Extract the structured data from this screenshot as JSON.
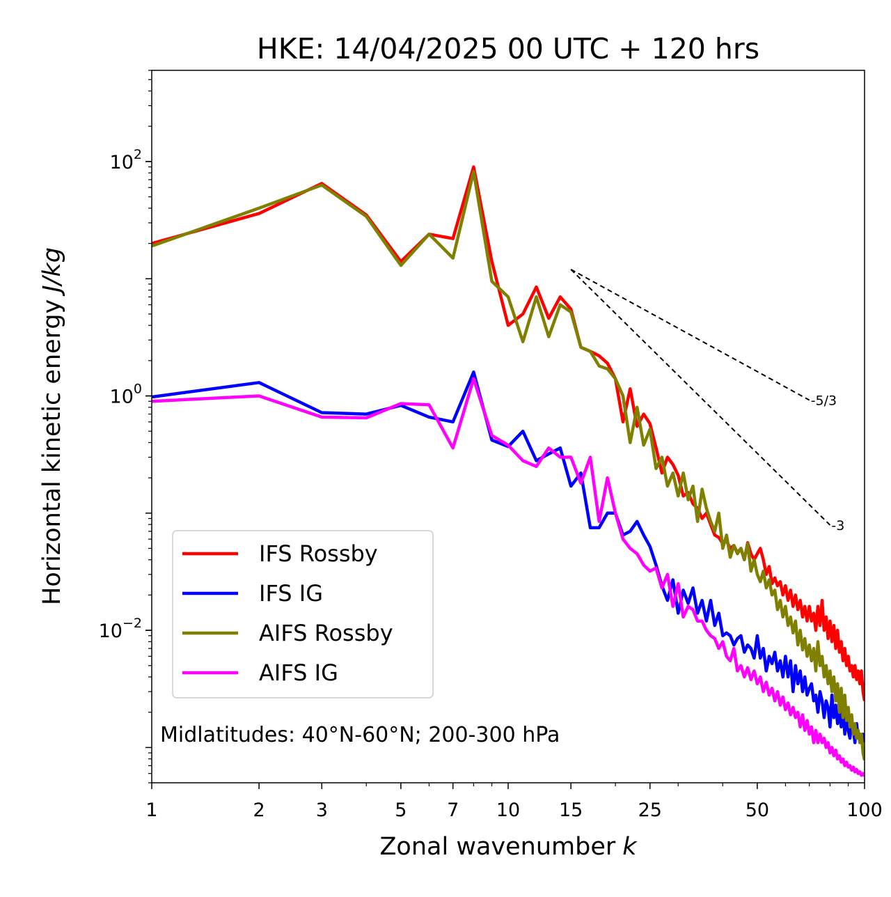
{
  "chart_data": {
    "type": "line",
    "title": "HKE: 14/04/2025 00 UTC + 120 hrs",
    "xlabel": "Zonal wavenumber",
    "xlabel_var": "k",
    "ylabel": "Horizontal kinetic energy",
    "ylabel_unit": "J/kg",
    "xscale": "log",
    "yscale": "log",
    "xlim": [
      1,
      100
    ],
    "ylim": [
      0.0005,
      600
    ],
    "xticks": [
      1,
      2,
      3,
      5,
      7,
      10,
      15,
      25,
      50,
      100
    ],
    "yticks": [
      {
        "value": 0.01,
        "base": "10",
        "exp": "−2"
      },
      {
        "value": 1,
        "base": "10",
        "exp": "0"
      },
      {
        "value": 100,
        "base": "10",
        "exp": "2"
      }
    ],
    "annotation": "Midlatitudes: 40°N-60°N; 200-300 hPa",
    "legend_position": "lower-left",
    "reference_lines": [
      {
        "label": "-5/3",
        "slope": -1.6667,
        "x0": 15,
        "y0": 12.0,
        "x1": 70,
        "color": "#000000"
      },
      {
        "label": "-3",
        "slope": -3,
        "x0": 15,
        "y0": 12.0,
        "x1": 80,
        "color": "#000000"
      }
    ],
    "series": [
      {
        "name": "IFS Rossby",
        "color": "#ff0000",
        "x": [
          1,
          2,
          3,
          4,
          5,
          6,
          7,
          8,
          9,
          10,
          11,
          12,
          13,
          14,
          15,
          16,
          17,
          18,
          19,
          20,
          21,
          22,
          23,
          24,
          25,
          26,
          27,
          28,
          29,
          30,
          31,
          32,
          33,
          34,
          35,
          36,
          37,
          38,
          39,
          40,
          41,
          42,
          43,
          44,
          45,
          46,
          47,
          48,
          49,
          50,
          51,
          52,
          53,
          54,
          55,
          56,
          57,
          58,
          59,
          60,
          61,
          62,
          63,
          64,
          65,
          66,
          67,
          68,
          69,
          70,
          71,
          72,
          73,
          74,
          75,
          76,
          77,
          78,
          79,
          80,
          81,
          82,
          83,
          84,
          85,
          86,
          87,
          88,
          89,
          90,
          91,
          92,
          93,
          94,
          95,
          96,
          97,
          98,
          99,
          100
        ],
        "y": [
          20,
          36,
          65,
          35,
          14,
          24,
          22,
          90,
          14,
          4.0,
          5.0,
          8.5,
          4.6,
          7.0,
          5.5,
          2.6,
          2.4,
          2.2,
          1.9,
          1.4,
          0.6,
          1.15,
          0.55,
          0.7,
          0.58,
          0.36,
          0.22,
          0.3,
          0.26,
          0.21,
          0.14,
          0.15,
          0.12,
          0.11,
          0.09,
          0.1,
          0.08,
          0.065,
          0.062,
          0.055,
          0.058,
          0.05,
          0.053,
          0.046,
          0.05,
          0.04,
          0.056,
          0.045,
          0.04,
          0.045,
          0.05,
          0.04,
          0.03,
          0.035,
          0.025,
          0.028,
          0.024,
          0.026,
          0.02,
          0.024,
          0.018,
          0.022,
          0.016,
          0.02,
          0.015,
          0.018,
          0.013,
          0.016,
          0.012,
          0.016,
          0.012,
          0.014,
          0.01,
          0.016,
          0.011,
          0.018,
          0.01,
          0.013,
          0.0085,
          0.012,
          0.008,
          0.011,
          0.007,
          0.01,
          0.0065,
          0.008,
          0.0055,
          0.007,
          0.005,
          0.006,
          0.0045,
          0.005,
          0.004,
          0.005,
          0.0038,
          0.0045,
          0.0035,
          0.0045,
          0.003,
          0.0025
        ]
      },
      {
        "name": "IFS IG",
        "color": "#0000ff",
        "x": [
          1,
          2,
          3,
          4,
          5,
          6,
          7,
          8,
          9,
          10,
          11,
          12,
          13,
          14,
          15,
          16,
          17,
          18,
          19,
          20,
          21,
          22,
          23,
          24,
          25,
          26,
          27,
          28,
          29,
          30,
          31,
          32,
          33,
          34,
          35,
          36,
          37,
          38,
          39,
          40,
          41,
          42,
          43,
          44,
          45,
          46,
          47,
          48,
          49,
          50,
          51,
          52,
          53,
          54,
          55,
          56,
          57,
          58,
          59,
          60,
          61,
          62,
          63,
          64,
          65,
          66,
          67,
          68,
          69,
          70,
          71,
          72,
          73,
          74,
          75,
          76,
          77,
          78,
          79,
          80,
          81,
          82,
          83,
          84,
          85,
          86,
          87,
          88,
          89,
          90,
          91,
          92,
          93,
          94,
          95,
          96,
          97,
          98,
          99,
          100
        ],
        "y": [
          0.98,
          1.3,
          0.72,
          0.7,
          0.83,
          0.66,
          0.6,
          1.6,
          0.42,
          0.37,
          0.5,
          0.28,
          0.32,
          0.36,
          0.17,
          0.22,
          0.075,
          0.075,
          0.1,
          0.1,
          0.065,
          0.07,
          0.085,
          0.065,
          0.052,
          0.036,
          0.024,
          0.018,
          0.027,
          0.014,
          0.022,
          0.017,
          0.023,
          0.014,
          0.018,
          0.012,
          0.018,
          0.011,
          0.014,
          0.009,
          0.0095,
          0.009,
          0.0075,
          0.0085,
          0.009,
          0.0065,
          0.0075,
          0.007,
          0.0058,
          0.009,
          0.0058,
          0.007,
          0.0045,
          0.006,
          0.0052,
          0.0065,
          0.0045,
          0.0055,
          0.004,
          0.006,
          0.004,
          0.0055,
          0.003,
          0.005,
          0.0035,
          0.0045,
          0.003,
          0.004,
          0.0028,
          0.0032,
          0.0035,
          0.0025,
          0.0028,
          0.002,
          0.003,
          0.0025,
          0.0018,
          0.0025,
          0.0022,
          0.0015,
          0.0028,
          0.0018,
          0.0023,
          0.0016,
          0.002,
          0.0015,
          0.0022,
          0.0013,
          0.0018,
          0.0014,
          0.0012,
          0.0016,
          0.0014,
          0.0011,
          0.0016,
          0.0012,
          0.0013,
          0.0011,
          0.0013,
          0.0011
        ]
      },
      {
        "name": "AIFS Rossby",
        "color": "#808000",
        "x": [
          1,
          2,
          3,
          4,
          5,
          6,
          7,
          8,
          9,
          10,
          11,
          12,
          13,
          14,
          15,
          16,
          17,
          18,
          19,
          20,
          21,
          22,
          23,
          24,
          25,
          26,
          27,
          28,
          29,
          30,
          31,
          32,
          33,
          34,
          35,
          36,
          37,
          38,
          39,
          40,
          41,
          42,
          43,
          44,
          45,
          46,
          47,
          48,
          49,
          50,
          51,
          52,
          53,
          54,
          55,
          56,
          57,
          58,
          59,
          60,
          61,
          62,
          63,
          64,
          65,
          66,
          67,
          68,
          69,
          70,
          71,
          72,
          73,
          74,
          75,
          76,
          77,
          78,
          79,
          80,
          81,
          82,
          83,
          84,
          85,
          86,
          87,
          88,
          89,
          90,
          91,
          92,
          93,
          94,
          95,
          96,
          97,
          98,
          99,
          100
        ],
        "y": [
          19,
          40,
          63,
          34,
          13,
          24,
          15,
          82,
          9.5,
          7.0,
          2.9,
          7.0,
          3.2,
          6.0,
          5.2,
          2.6,
          2.4,
          1.8,
          1.7,
          1.4,
          1.0,
          0.4,
          0.8,
          0.38,
          0.52,
          0.24,
          0.3,
          0.17,
          0.22,
          0.14,
          0.22,
          0.13,
          0.17,
          0.085,
          0.16,
          0.11,
          0.085,
          0.07,
          0.1,
          0.05,
          0.065,
          0.042,
          0.053,
          0.045,
          0.05,
          0.04,
          0.055,
          0.032,
          0.04,
          0.03,
          0.026,
          0.032,
          0.023,
          0.027,
          0.02,
          0.022,
          0.015,
          0.018,
          0.013,
          0.016,
          0.011,
          0.013,
          0.0095,
          0.012,
          0.0075,
          0.01,
          0.0068,
          0.0085,
          0.006,
          0.0075,
          0.0055,
          0.007,
          0.0045,
          0.008,
          0.005,
          0.006,
          0.004,
          0.005,
          0.0035,
          0.0045,
          0.003,
          0.004,
          0.0025,
          0.0035,
          0.002,
          0.0032,
          0.0018,
          0.0028,
          0.0017,
          0.0022,
          0.0015,
          0.0019,
          0.0013,
          0.0016,
          0.0012,
          0.0014,
          0.0011,
          0.0013,
          0.0009,
          0.00078
        ]
      },
      {
        "name": "AIFS IG",
        "color": "#ff00ff",
        "x": [
          1,
          2,
          3,
          4,
          5,
          6,
          7,
          8,
          9,
          10,
          11,
          12,
          13,
          14,
          15,
          16,
          17,
          18,
          19,
          20,
          21,
          22,
          23,
          24,
          25,
          26,
          27,
          28,
          29,
          30,
          31,
          32,
          33,
          34,
          35,
          36,
          37,
          38,
          39,
          40,
          41,
          42,
          43,
          44,
          45,
          46,
          47,
          48,
          49,
          50,
          51,
          52,
          53,
          54,
          55,
          56,
          57,
          58,
          59,
          60,
          61,
          62,
          63,
          64,
          65,
          66,
          67,
          68,
          69,
          70,
          71,
          72,
          73,
          74,
          75,
          76,
          77,
          78,
          79,
          80,
          81,
          82,
          83,
          84,
          85,
          86,
          87,
          88,
          89,
          90,
          91,
          92,
          93,
          94,
          95,
          96,
          97,
          98,
          99,
          100
        ],
        "y": [
          0.9,
          1.0,
          0.66,
          0.65,
          0.86,
          0.84,
          0.36,
          1.4,
          0.46,
          0.38,
          0.28,
          0.25,
          0.36,
          0.3,
          0.3,
          0.18,
          0.3,
          0.085,
          0.2,
          0.1,
          0.06,
          0.05,
          0.045,
          0.036,
          0.032,
          0.034,
          0.023,
          0.03,
          0.016,
          0.025,
          0.013,
          0.016,
          0.015,
          0.012,
          0.012,
          0.01,
          0.009,
          0.0085,
          0.007,
          0.008,
          0.006,
          0.0055,
          0.007,
          0.0045,
          0.005,
          0.004,
          0.0048,
          0.0038,
          0.0045,
          0.0035,
          0.004,
          0.003,
          0.0036,
          0.0028,
          0.0032,
          0.0025,
          0.003,
          0.0023,
          0.0027,
          0.0021,
          0.0024,
          0.0019,
          0.0022,
          0.0018,
          0.002,
          0.0015,
          0.0019,
          0.0014,
          0.0017,
          0.0013,
          0.0015,
          0.0011,
          0.0014,
          0.0011,
          0.0013,
          0.0011,
          0.0012,
          0.001,
          0.0011,
          0.0009,
          0.001,
          0.00085,
          0.00095,
          0.0008,
          0.00085,
          0.00075,
          0.0008,
          0.0007,
          0.00075,
          0.00068,
          0.0007,
          0.00064,
          0.00068,
          0.00062,
          0.00065,
          0.0006,
          0.00062,
          0.00058,
          0.0006,
          0.00057
        ]
      }
    ]
  }
}
